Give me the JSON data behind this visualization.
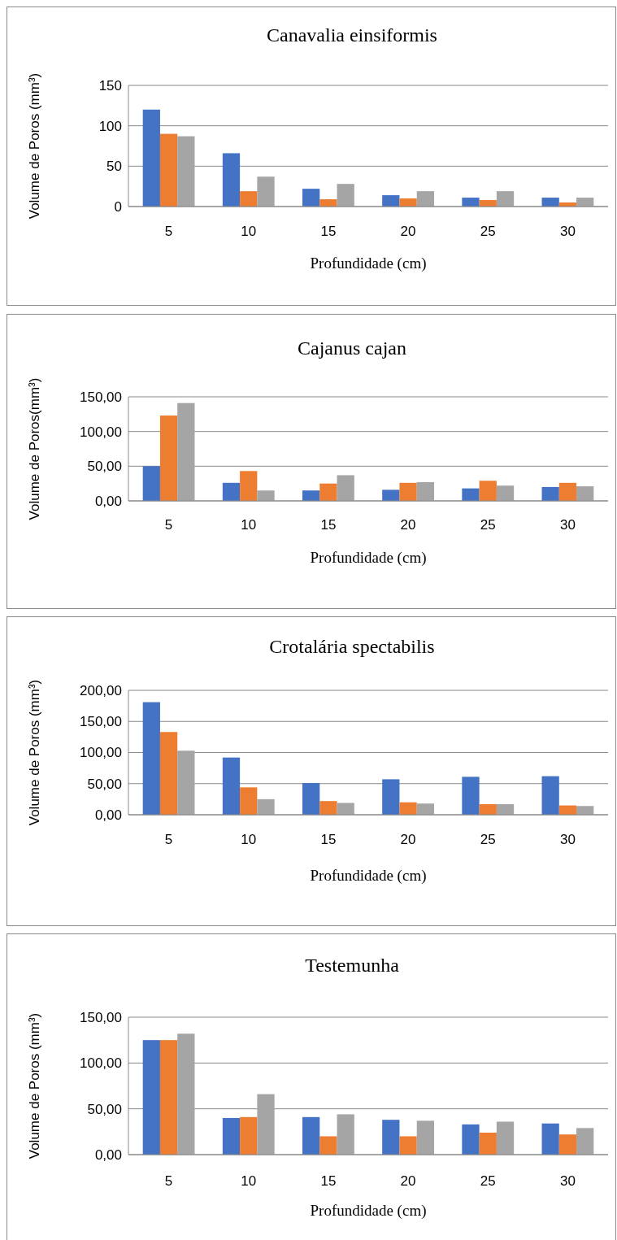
{
  "chart_data": [
    {
      "type": "bar",
      "title": "Canavalia einsiformis",
      "xlabel": "Profundidade (cm)",
      "ylabel": "Volume de Poros (mm³)",
      "categories": [
        "5",
        "10",
        "15",
        "20",
        "25",
        "30"
      ],
      "ylim": [
        0,
        150
      ],
      "yticks": [
        0,
        50,
        100,
        150
      ],
      "grid": "y",
      "series": [
        {
          "color": "#4472c4",
          "values": [
            120,
            66,
            22,
            14,
            11,
            11
          ]
        },
        {
          "color": "#ed7d31",
          "values": [
            90,
            19,
            9,
            10,
            8,
            5
          ]
        },
        {
          "color": "#a5a5a5",
          "values": [
            87,
            37,
            28,
            19,
            19,
            11
          ]
        }
      ]
    },
    {
      "type": "bar",
      "title": "Cajanus cajan",
      "xlabel": "Profundidade (cm)",
      "ylabel": "Volume de Poros(mm³)",
      "categories": [
        "5",
        "10",
        "15",
        "20",
        "25",
        "30"
      ],
      "ylim": [
        0,
        150
      ],
      "yticks": [
        {
          "value": 0,
          "label": "0,00"
        },
        {
          "value": 50,
          "label": "50,00"
        },
        {
          "value": 100,
          "label": "100,00"
        },
        {
          "value": 150,
          "label": "150,00"
        }
      ],
      "grid": "y",
      "series": [
        {
          "color": "#4472c4",
          "values": [
            50,
            26,
            15,
            16,
            18,
            20
          ]
        },
        {
          "color": "#ed7d31",
          "values": [
            123,
            43,
            25,
            26,
            29,
            26
          ]
        },
        {
          "color": "#a5a5a5",
          "values": [
            141,
            15,
            37,
            27,
            22,
            21
          ]
        }
      ]
    },
    {
      "type": "bar",
      "title": "Crotalária  spectabilis",
      "xlabel": "Profundidade (cm)",
      "ylabel": "Volume de Poros (mm³)",
      "categories": [
        "5",
        "10",
        "15",
        "20",
        "25",
        "30"
      ],
      "ylim": [
        0,
        200
      ],
      "yticks": [
        {
          "value": 0,
          "label": "0,00"
        },
        {
          "value": 50,
          "label": "50,00"
        },
        {
          "value": 100,
          "label": "100,00"
        },
        {
          "value": 150,
          "label": "150,00"
        },
        {
          "value": 200,
          "label": "200,00"
        }
      ],
      "grid": "y",
      "series": [
        {
          "color": "#4472c4",
          "values": [
            181,
            92,
            51,
            57,
            61,
            62
          ]
        },
        {
          "color": "#ed7d31",
          "values": [
            133,
            44,
            22,
            20,
            17,
            15
          ]
        },
        {
          "color": "#a5a5a5",
          "values": [
            103,
            25,
            19,
            18,
            17,
            14
          ]
        }
      ]
    },
    {
      "type": "bar",
      "title": "Testemunha",
      "xlabel": "Profundidade (cm)",
      "ylabel": "Volume de Poros (mm³)",
      "categories": [
        "5",
        "10",
        "15",
        "20",
        "25",
        "30"
      ],
      "ylim": [
        0,
        150
      ],
      "yticks": [
        {
          "value": 0,
          "label": "0,00"
        },
        {
          "value": 50,
          "label": "50,00"
        },
        {
          "value": 100,
          "label": "100,00"
        },
        {
          "value": 150,
          "label": "150,00"
        }
      ],
      "grid": "y",
      "series": [
        {
          "color": "#4472c4",
          "values": [
            125,
            40,
            41,
            38,
            33,
            34
          ]
        },
        {
          "color": "#ed7d31",
          "values": [
            125,
            41,
            20,
            20,
            24,
            22
          ]
        },
        {
          "color": "#a5a5a5",
          "values": [
            132,
            66,
            44,
            37,
            36,
            29
          ]
        }
      ]
    }
  ]
}
